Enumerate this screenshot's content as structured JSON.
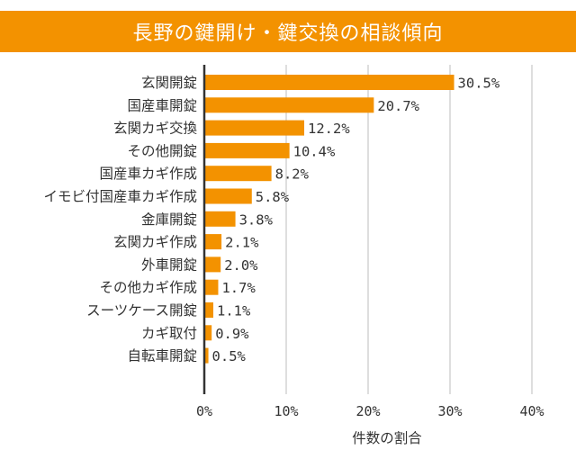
{
  "chart_data": {
    "type": "bar",
    "orientation": "horizontal",
    "title": "長野の鍵開け・鍵交換の相談傾向",
    "xlabel": "件数の割合",
    "ylabel": "",
    "xlim": [
      0,
      40
    ],
    "x_ticks": [
      "0%",
      "10%",
      "20%",
      "30%",
      "40%"
    ],
    "grid": true,
    "bar_color": "#f39200",
    "title_bg_color": "#f39200",
    "categories": [
      "玄関開錠",
      "国産車開錠",
      "玄関カギ交換",
      "その他開錠",
      "国産車カギ作成",
      "イモビ付国産車カギ作成",
      "金庫開錠",
      "玄関カギ作成",
      "外車開錠",
      "その他カギ作成",
      "スーツケース開錠",
      "カギ取付",
      "自転車開錠"
    ],
    "values": [
      30.5,
      20.7,
      12.2,
      10.4,
      8.2,
      5.8,
      3.8,
      2.1,
      2.0,
      1.7,
      1.1,
      0.9,
      0.5
    ],
    "value_labels": [
      "30.5%",
      "20.7%",
      "12.2%",
      "10.4%",
      "8.2%",
      "5.8%",
      "3.8%",
      "2.1%",
      "2.0%",
      "1.7%",
      "1.1%",
      "0.9%",
      "0.5%"
    ]
  }
}
